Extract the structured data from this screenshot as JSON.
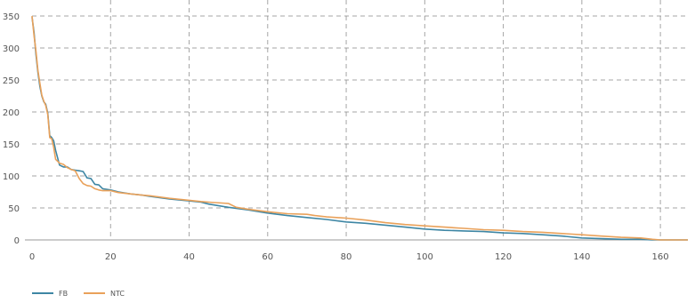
{
  "chart_data": {
    "type": "line",
    "title": "",
    "xlabel": "",
    "ylabel": "",
    "xlim": [
      0,
      167
    ],
    "ylim": [
      0,
      350
    ],
    "xticks": [
      0,
      20,
      40,
      60,
      80,
      100,
      120,
      140,
      160
    ],
    "yticks": [
      0,
      50,
      100,
      150,
      200,
      250,
      300,
      350
    ],
    "grid": true,
    "legend_position": "bottom-left",
    "series": [
      {
        "name": "FB",
        "color": "#3e86a4",
        "x": [
          0,
          0.5,
          1,
          1.5,
          2,
          2.5,
          3,
          3.5,
          4,
          4.5,
          5,
          5.5,
          6,
          7,
          8,
          9,
          10,
          11,
          12,
          13,
          14,
          15,
          16,
          17,
          18,
          20,
          22,
          25,
          28,
          30,
          35,
          40,
          43,
          45,
          50,
          55,
          60,
          65,
          70,
          75,
          80,
          85,
          90,
          95,
          100,
          105,
          110,
          115,
          120,
          125,
          130,
          135,
          140,
          145,
          150,
          155,
          158,
          160,
          163,
          167
        ],
        "y": [
          348,
          325,
          290,
          262,
          240,
          225,
          216,
          212,
          198,
          163,
          160,
          155,
          140,
          117,
          114,
          114,
          110,
          109,
          108,
          107,
          97,
          96,
          87,
          86,
          80,
          78,
          75,
          72,
          70,
          68,
          64,
          61,
          59,
          56,
          51,
          47,
          42,
          38,
          35,
          32,
          28,
          26,
          23,
          20,
          17,
          15,
          14,
          13,
          11,
          10,
          8,
          6,
          3,
          2,
          1,
          1,
          0,
          0,
          0,
          0
        ]
      },
      {
        "name": "NTC",
        "color": "#e9a15a",
        "x": [
          0,
          0.5,
          1,
          1.5,
          2,
          2.5,
          3,
          3.5,
          4,
          4.5,
          5,
          5.5,
          6,
          7,
          8,
          9,
          10,
          11,
          12,
          13,
          14,
          15,
          16,
          17,
          18,
          20,
          22,
          25,
          28,
          30,
          35,
          40,
          43,
          45,
          50,
          52,
          55,
          60,
          65,
          70,
          72,
          75,
          80,
          85,
          90,
          95,
          100,
          105,
          110,
          115,
          120,
          125,
          130,
          135,
          140,
          145,
          150,
          155,
          158,
          160,
          163,
          167
        ],
        "y": [
          350,
          320,
          295,
          265,
          245,
          226,
          217,
          210,
          196,
          160,
          158,
          145,
          126,
          120,
          118,
          113,
          110,
          108,
          96,
          88,
          85,
          84,
          80,
          78,
          77,
          77,
          74,
          72,
          70,
          69,
          65,
          62,
          60,
          59,
          57,
          51,
          48,
          44,
          41,
          40,
          38,
          36,
          34,
          31,
          27,
          24,
          22,
          20,
          18,
          16,
          15,
          13,
          12,
          10,
          8,
          6,
          4,
          3,
          1,
          0,
          0,
          0
        ]
      }
    ]
  }
}
